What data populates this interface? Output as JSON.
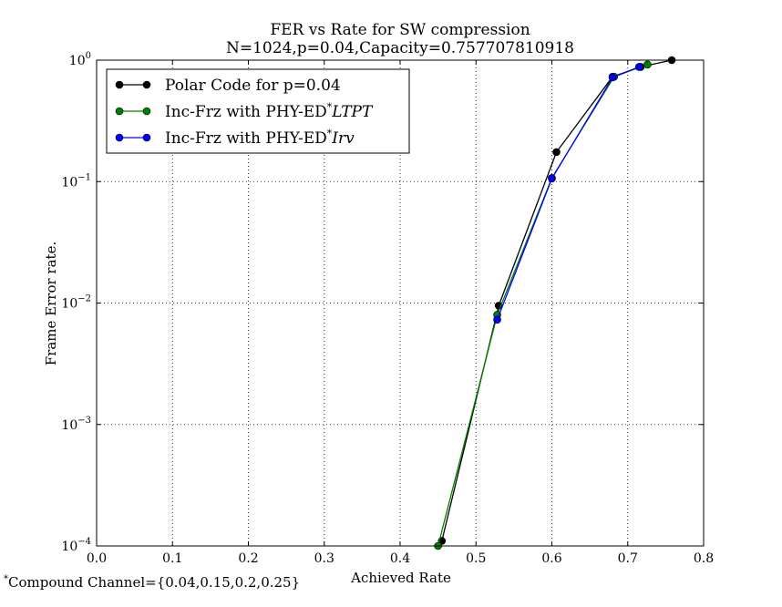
{
  "chart_data": {
    "type": "line",
    "title": [
      "FER vs Rate for SW compression",
      "N=1024,p=0.04,Capacity=0.757707810918"
    ],
    "xlabel": "Achieved Rate",
    "ylabel": "Frame Error rate.",
    "xlim": [
      0.0,
      0.8
    ],
    "ylim": [
      0.0001,
      1
    ],
    "yscale": "log",
    "grid": true,
    "legend_position": "top-left",
    "x_ticks": [
      0.0,
      0.1,
      0.2,
      0.3,
      0.4,
      0.5,
      0.6,
      0.7,
      0.8
    ],
    "x_tick_labels": [
      "0.0",
      "0.1",
      "0.2",
      "0.3",
      "0.4",
      "0.5",
      "0.6",
      "0.7",
      "0.8"
    ],
    "y_ticks": [
      0.0001,
      0.001,
      0.01,
      0.1,
      1
    ],
    "y_tick_labels": [
      {
        "base": "10",
        "exp": "−4"
      },
      {
        "base": "10",
        "exp": "−3"
      },
      {
        "base": "10",
        "exp": "−2"
      },
      {
        "base": "10",
        "exp": "−1"
      },
      {
        "base": "10",
        "exp": "0"
      }
    ],
    "series": [
      {
        "name": "Polar Code for p=0.04",
        "color": "#000000",
        "x": [
          0.455,
          0.53,
          0.606,
          0.68,
          0.717,
          0.758
        ],
        "y": [
          0.00011,
          0.0095,
          0.175,
          0.73,
          0.88,
          1.0
        ]
      },
      {
        "name": "Inc-Frz with PHY-ED*LTPT",
        "color": "#008000",
        "x": [
          0.45,
          0.528,
          0.6,
          0.682,
          0.726
        ],
        "y": [
          0.0001,
          0.008,
          0.107,
          0.73,
          0.92
        ]
      },
      {
        "name": "Inc-Frz with PHY-ED*Irv",
        "color": "#0000ff",
        "x": [
          0.528,
          0.6,
          0.68,
          0.715
        ],
        "y": [
          0.0073,
          0.106,
          0.72,
          0.88
        ]
      }
    ],
    "legend_entries": [
      {
        "text": "Polar Code for p=0.04",
        "sup": "",
        "italic": ""
      },
      {
        "text": "Inc-Frz with PHY-ED",
        "sup": "*",
        "italic": "LTPT"
      },
      {
        "text": "Inc-Frz with PHY-ED",
        "sup": "*",
        "italic": "Irv"
      }
    ],
    "footnote": {
      "sup": "*",
      "text": "Compound Channel={0.04,0.15,0.2,0.25}"
    }
  }
}
